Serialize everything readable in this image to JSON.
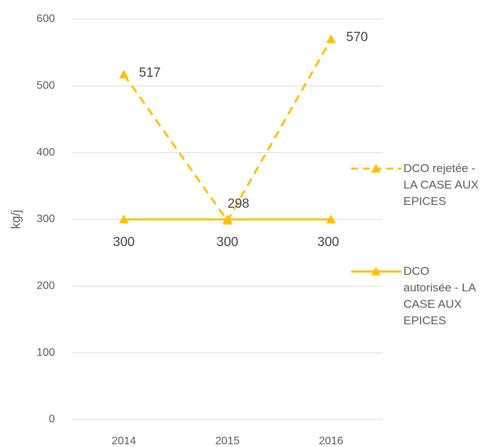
{
  "chart_data": {
    "type": "line",
    "y_label": "kg/j",
    "categories": [
      "2014",
      "2015",
      "2016"
    ],
    "series": [
      {
        "name": "DCO rejetée - LA CASE AUX EPICES",
        "color": "#ffc000",
        "dashed": true,
        "values": [
          517,
          298,
          570
        ]
      },
      {
        "name": "DCO autorisée - LA CASE AUX EPICES",
        "color": "#ffc000",
        "dashed": false,
        "values": [
          300,
          300,
          300
        ]
      }
    ],
    "ylim": [
      0,
      600
    ],
    "yticks": [
      0,
      100,
      200,
      300,
      400,
      500,
      600
    ],
    "grid": true,
    "legend": "right"
  }
}
